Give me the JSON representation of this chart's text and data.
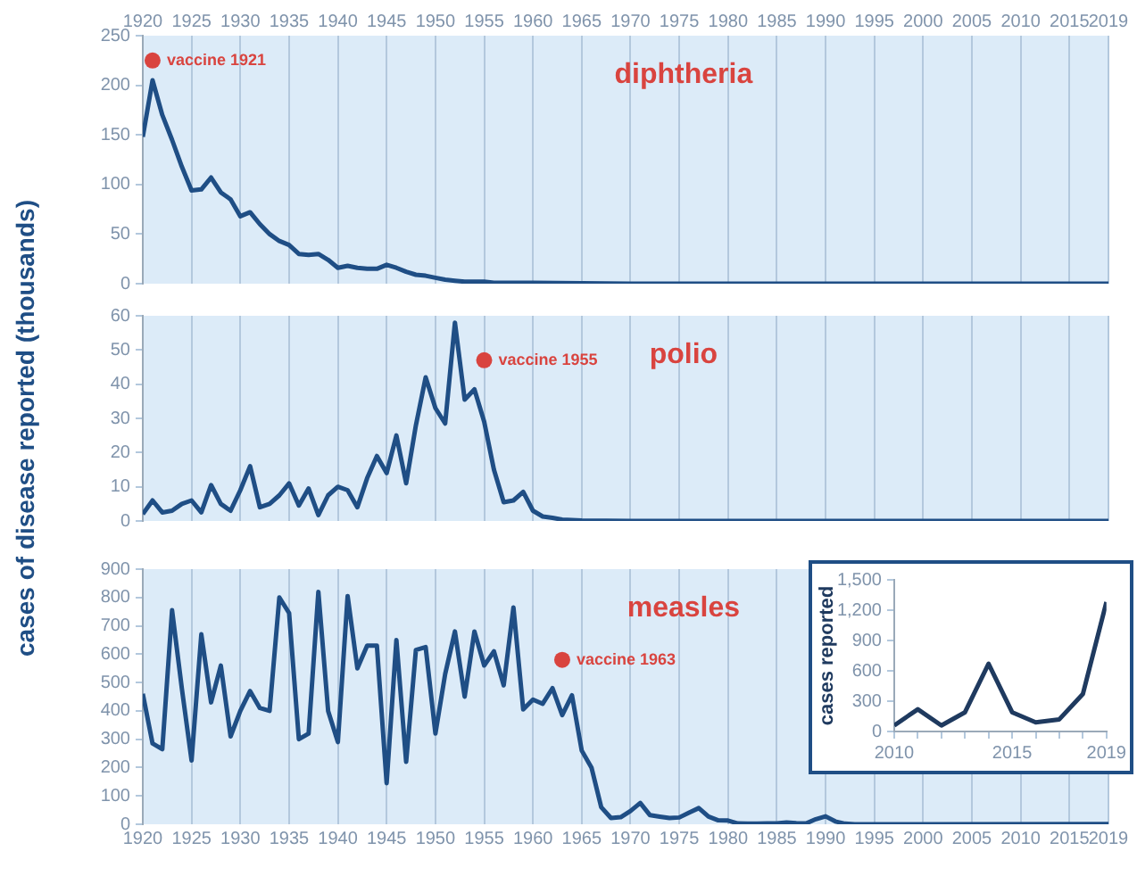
{
  "chart_data": [
    {
      "type": "line",
      "title": "diphtheria",
      "annotations": [
        {
          "text": "vaccine 1921",
          "x": 1921,
          "y": 225
        }
      ],
      "color": "#1f4e85",
      "x": [
        1920,
        1921,
        1922,
        1923,
        1924,
        1925,
        1926,
        1927,
        1928,
        1929,
        1930,
        1931,
        1932,
        1933,
        1934,
        1935,
        1936,
        1937,
        1938,
        1939,
        1940,
        1941,
        1942,
        1943,
        1944,
        1945,
        1946,
        1947,
        1948,
        1949,
        1950,
        1951,
        1952,
        1953,
        1954,
        1955,
        1956,
        1960,
        1970,
        1980,
        2019
      ],
      "values": [
        148,
        205,
        170,
        145,
        118,
        94,
        95,
        107,
        92,
        85,
        68,
        72,
        60,
        50,
        43,
        39,
        30,
        29,
        30,
        24,
        16,
        18,
        16,
        15,
        15,
        19,
        16,
        12,
        9,
        8,
        6,
        4,
        3,
        2,
        2,
        2,
        1,
        1,
        0,
        0,
        0
      ],
      "xlim": [
        1920,
        2019
      ],
      "xticks": [
        1920,
        1925,
        1930,
        1935,
        1940,
        1945,
        1950,
        1955,
        1960,
        1965,
        1970,
        1975,
        1980,
        1985,
        1990,
        1995,
        2000,
        2005,
        2010,
        2015,
        2019
      ],
      "ylim": [
        0,
        250
      ],
      "yticks": [
        0,
        50,
        100,
        150,
        200,
        250
      ],
      "grid": "x"
    },
    {
      "type": "line",
      "title": "polio",
      "ylabel": "cases of disease reported (thousands)",
      "annotations": [
        {
          "text": "vaccine 1955",
          "x": 1955,
          "y": 47
        }
      ],
      "color": "#1f4e85",
      "x": [
        1920,
        1921,
        1922,
        1923,
        1924,
        1925,
        1926,
        1927,
        1928,
        1929,
        1930,
        1931,
        1932,
        1933,
        1934,
        1935,
        1936,
        1937,
        1938,
        1939,
        1940,
        1941,
        1942,
        1943,
        1944,
        1945,
        1946,
        1947,
        1948,
        1949,
        1950,
        1951,
        1952,
        1953,
        1954,
        1955,
        1956,
        1957,
        1958,
        1959,
        1960,
        1961,
        1962,
        1963,
        1965,
        1970,
        2019
      ],
      "values": [
        2,
        6,
        2.5,
        3,
        5,
        6,
        2.5,
        10.5,
        5,
        3,
        9,
        16,
        4,
        5,
        7.5,
        11,
        4.5,
        9.5,
        1.7,
        7.5,
        10,
        9,
        4,
        12.5,
        19,
        14,
        25,
        11,
        28,
        42,
        33,
        28.5,
        58,
        35.5,
        38.5,
        29,
        15,
        5.5,
        6,
        8.5,
        3,
        1.3,
        0.9,
        0.4,
        0.1,
        0,
        0
      ],
      "xlim": [
        1920,
        2019
      ],
      "xticks": [
        1920,
        1925,
        1930,
        1935,
        1940,
        1945,
        1950,
        1955,
        1960,
        1965,
        1970,
        1975,
        1980,
        1985,
        1990,
        1995,
        2000,
        2005,
        2010,
        2015,
        2019
      ],
      "ylim": [
        0,
        60
      ],
      "yticks": [
        0,
        10,
        20,
        30,
        40,
        50,
        60
      ],
      "grid": "x",
      "tick_labels": "y"
    },
    {
      "type": "line",
      "title": "measles",
      "annotations": [
        {
          "text": "vaccine 1963",
          "x": 1963,
          "y": 580
        }
      ],
      "color": "#1f4e85",
      "x": [
        1920,
        1921,
        1922,
        1923,
        1924,
        1925,
        1926,
        1927,
        1928,
        1929,
        1930,
        1931,
        1932,
        1933,
        1934,
        1935,
        1936,
        1937,
        1938,
        1939,
        1940,
        1941,
        1942,
        1943,
        1944,
        1945,
        1946,
        1947,
        1948,
        1949,
        1950,
        1951,
        1952,
        1953,
        1954,
        1955,
        1956,
        1957,
        1958,
        1959,
        1960,
        1961,
        1962,
        1963,
        1964,
        1965,
        1966,
        1967,
        1968,
        1969,
        1970,
        1971,
        1972,
        1973,
        1974,
        1975,
        1976,
        1977,
        1978,
        1979,
        1980,
        1981,
        1982,
        1983,
        1984,
        1985,
        1986,
        1987,
        1988,
        1989,
        1990,
        1991,
        1992,
        1993,
        1995,
        2000,
        2019
      ],
      "values": [
        460,
        285,
        265,
        755,
        480,
        225,
        670,
        430,
        560,
        310,
        400,
        470,
        410,
        400,
        800,
        745,
        300,
        320,
        820,
        400,
        290,
        805,
        550,
        630,
        630,
        145,
        650,
        220,
        615,
        625,
        320,
        530,
        680,
        450,
        680,
        560,
        610,
        490,
        765,
        405,
        440,
        425,
        480,
        385,
        455,
        260,
        200,
        60,
        22,
        25,
        47,
        75,
        32,
        27,
        22,
        24,
        41,
        57,
        27,
        14,
        13,
        3,
        2,
        2,
        3,
        3,
        6,
        4,
        3,
        18,
        28,
        10,
        2,
        0,
        0,
        0,
        1
      ],
      "xlim": [
        1920,
        2019
      ],
      "xticks": [
        1920,
        1925,
        1930,
        1935,
        1940,
        1945,
        1950,
        1955,
        1960,
        1965,
        1970,
        1975,
        1980,
        1985,
        1990,
        1995,
        2000,
        2005,
        2010,
        2015,
        2019
      ],
      "ylim": [
        0,
        900
      ],
      "yticks": [
        0,
        100,
        200,
        300,
        400,
        500,
        600,
        700,
        800,
        900
      ],
      "grid": "x"
    },
    {
      "type": "line",
      "ylabel": "cases reported",
      "color": "#1f3a5f",
      "x": [
        2010,
        2011,
        2012,
        2013,
        2014,
        2015,
        2016,
        2017,
        2018,
        2019
      ],
      "values": [
        60,
        220,
        60,
        190,
        670,
        190,
        90,
        120,
        370,
        1280
      ],
      "xlim": [
        2010,
        2019
      ],
      "xticks": [
        2010,
        {
          "value": 2011,
          "label": null
        },
        {
          "value": 2012,
          "label": null
        },
        {
          "value": 2013,
          "label": null
        },
        {
          "value": 2014,
          "label": null
        },
        2015,
        {
          "value": 2016,
          "label": null
        },
        {
          "value": 2017,
          "label": null
        },
        {
          "value": 2018,
          "label": null
        },
        2019
      ],
      "ylim": [
        0,
        1500
      ],
      "yticks": [
        0,
        {
          "value": 300,
          "label": "300"
        },
        {
          "value": 600,
          "label": "600"
        },
        {
          "value": 900,
          "label": "900"
        },
        {
          "value": 1200,
          "label": "1,200"
        },
        {
          "value": 1500,
          "label": "1,500"
        }
      ]
    }
  ]
}
